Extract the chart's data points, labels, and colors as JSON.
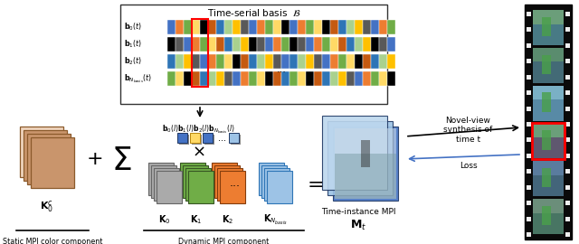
{
  "bg_color": "#ffffff",
  "basis_title": "Time-serial basis  $\\mathcal{B}$",
  "basis_labels": [
    "$\\mathbf{b}_0(t)$",
    "$\\mathbf{b}_1(t)$",
    "$\\mathbf{b}_2(t)$",
    "$\\mathbf{b}_{N_{basis}}(t)$"
  ],
  "row_colors_0": [
    "#4472C4",
    "#ED7D31",
    "#70AD47",
    "#FFD966",
    "#000000",
    "#C55A11",
    "#2E75B6",
    "#A9D18E",
    "#FFC000",
    "#595959",
    "#4472C4",
    "#ED7D31",
    "#70AD47",
    "#FFD966",
    "#000000",
    "#4472C4",
    "#ED7D31",
    "#70AD47",
    "#FFD966",
    "#000000",
    "#C55A11",
    "#2E75B6",
    "#A9D18E",
    "#FFC000",
    "#595959",
    "#4472C4",
    "#ED7D31",
    "#70AD47"
  ],
  "row_colors_1": [
    "#000000",
    "#595959",
    "#4472C4",
    "#ED7D31",
    "#70AD47",
    "#FFD966",
    "#C55A11",
    "#2E75B6",
    "#A9D18E",
    "#FFC000",
    "#000000",
    "#595959",
    "#4472C4",
    "#ED7D31",
    "#70AD47",
    "#000000",
    "#595959",
    "#4472C4",
    "#ED7D31",
    "#70AD47",
    "#FFD966",
    "#C55A11",
    "#2E75B6",
    "#A9D18E",
    "#FFC000",
    "#000000",
    "#595959",
    "#4472C4"
  ],
  "row_colors_2": [
    "#2E75B6",
    "#A9D18E",
    "#FFC000",
    "#595959",
    "#4472C4",
    "#ED7D31",
    "#70AD47",
    "#FFD966",
    "#000000",
    "#C55A11",
    "#2E75B6",
    "#A9D18E",
    "#FFC000",
    "#595959",
    "#4472C4",
    "#2E75B6",
    "#A9D18E",
    "#FFC000",
    "#595959",
    "#4472C4",
    "#ED7D31",
    "#70AD47",
    "#FFD966",
    "#000000",
    "#C55A11",
    "#2E75B6",
    "#A9D18E",
    "#FFC000"
  ],
  "row_colors_3": [
    "#70AD47",
    "#FFD966",
    "#000000",
    "#C55A11",
    "#2E75B6",
    "#A9D18E",
    "#FFC000",
    "#595959",
    "#4472C4",
    "#ED7D31",
    "#70AD47",
    "#FFD966",
    "#000000",
    "#C55A11",
    "#2E75B6",
    "#70AD47",
    "#FFD966",
    "#000000",
    "#C55A11",
    "#2E75B6",
    "#A9D18E",
    "#FFC000",
    "#595959",
    "#4472C4",
    "#ED7D31",
    "#70AD47",
    "#FFD966",
    "#000000"
  ],
  "static_label": "$\\mathbf{K}_0^c$",
  "static_sub": "Static MPI color component",
  "dynamic_label": "Dynamic MPI component",
  "k_labels": [
    "$\\mathbf{K}_0$",
    "$\\mathbf{K}_1$",
    "$\\mathbf{K}_2$",
    "$\\mathbf{K}_{N_{basis}}$"
  ],
  "scalar_label": "$\\mathbf{b}_0(l)\\mathbf{b}_1(l)\\mathbf{b}_2(l)\\mathbf{b}_{N_{basis}}(l)$",
  "mpi_label": "$\\mathbf{M}_t$",
  "mpi_sub": "Time-instance MPI",
  "novel_text": "Novel-view\nsynthesis of\ntime t",
  "loss_text": "Loss",
  "static_color": "#C9956C",
  "static_color_light": "#F0D5BE",
  "static_edge": "#8B5A2B",
  "k0_color": "#AAAAAA",
  "k0_edge": "#666666",
  "k1_color": "#70AD47",
  "k1_edge": "#375623",
  "k2_color": "#ED7D31",
  "k2_edge": "#843C0C",
  "kn_color": "#9DC3E6",
  "kn_edge": "#2E75B6",
  "scalar0_color": "#4472C4",
  "scalar1_color": "#FFD966",
  "scalar2_color": "#4472C4",
  "scalarN_color": "#9DC3E6",
  "mpi_color0": "#BDD7EE",
  "mpi_color1": "#9DC3E6",
  "mpi_color2": "#4472C4"
}
